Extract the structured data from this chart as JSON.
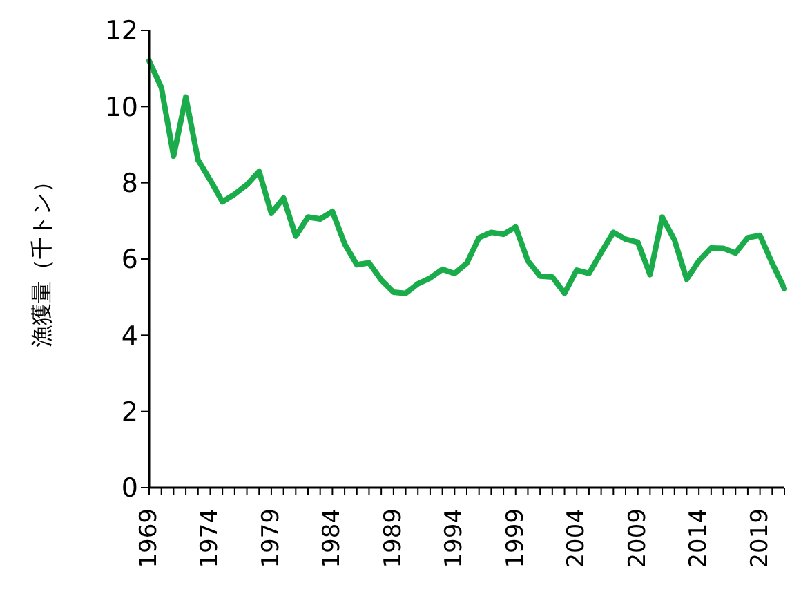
{
  "chart_data": {
    "type": "line",
    "ylabel": "漁獲量（千トン）",
    "categories": [
      "1969",
      null,
      null,
      null,
      null,
      "1974",
      null,
      null,
      null,
      null,
      "1979",
      null,
      null,
      null,
      null,
      "1984",
      null,
      null,
      null,
      null,
      "1989",
      null,
      null,
      null,
      null,
      "1994",
      null,
      null,
      null,
      null,
      "1999",
      null,
      null,
      null,
      null,
      "2004",
      null,
      null,
      null,
      null,
      "2009",
      null,
      null,
      null,
      null,
      "2014",
      null,
      null,
      null,
      null,
      "2019",
      null,
      null
    ],
    "series": [
      {
        "color": "#1aab4a",
        "values": [
          11.2,
          10.5,
          8.7,
          10.25,
          8.6,
          8.07,
          7.5,
          7.7,
          7.95,
          8.3,
          7.2,
          7.6,
          6.6,
          7.1,
          7.05,
          7.25,
          6.4,
          5.85,
          5.9,
          5.45,
          5.13,
          5.1,
          5.35,
          5.5,
          5.73,
          5.62,
          5.89,
          6.56,
          6.7,
          6.65,
          6.84,
          5.95,
          5.55,
          5.53,
          5.1,
          5.71,
          5.62,
          6.17,
          6.7,
          6.52,
          6.44,
          5.59,
          7.1,
          6.5,
          5.47,
          5.95,
          6.29,
          6.28,
          6.16,
          6.56,
          6.62,
          5.89,
          5.22
        ]
      }
    ],
    "ylim": [
      0,
      12
    ],
    "yticks": [
      0,
      2,
      4,
      6,
      8,
      10,
      12
    ],
    "grid": false,
    "legend": false,
    "marker": "none",
    "line_style": "solid"
  }
}
